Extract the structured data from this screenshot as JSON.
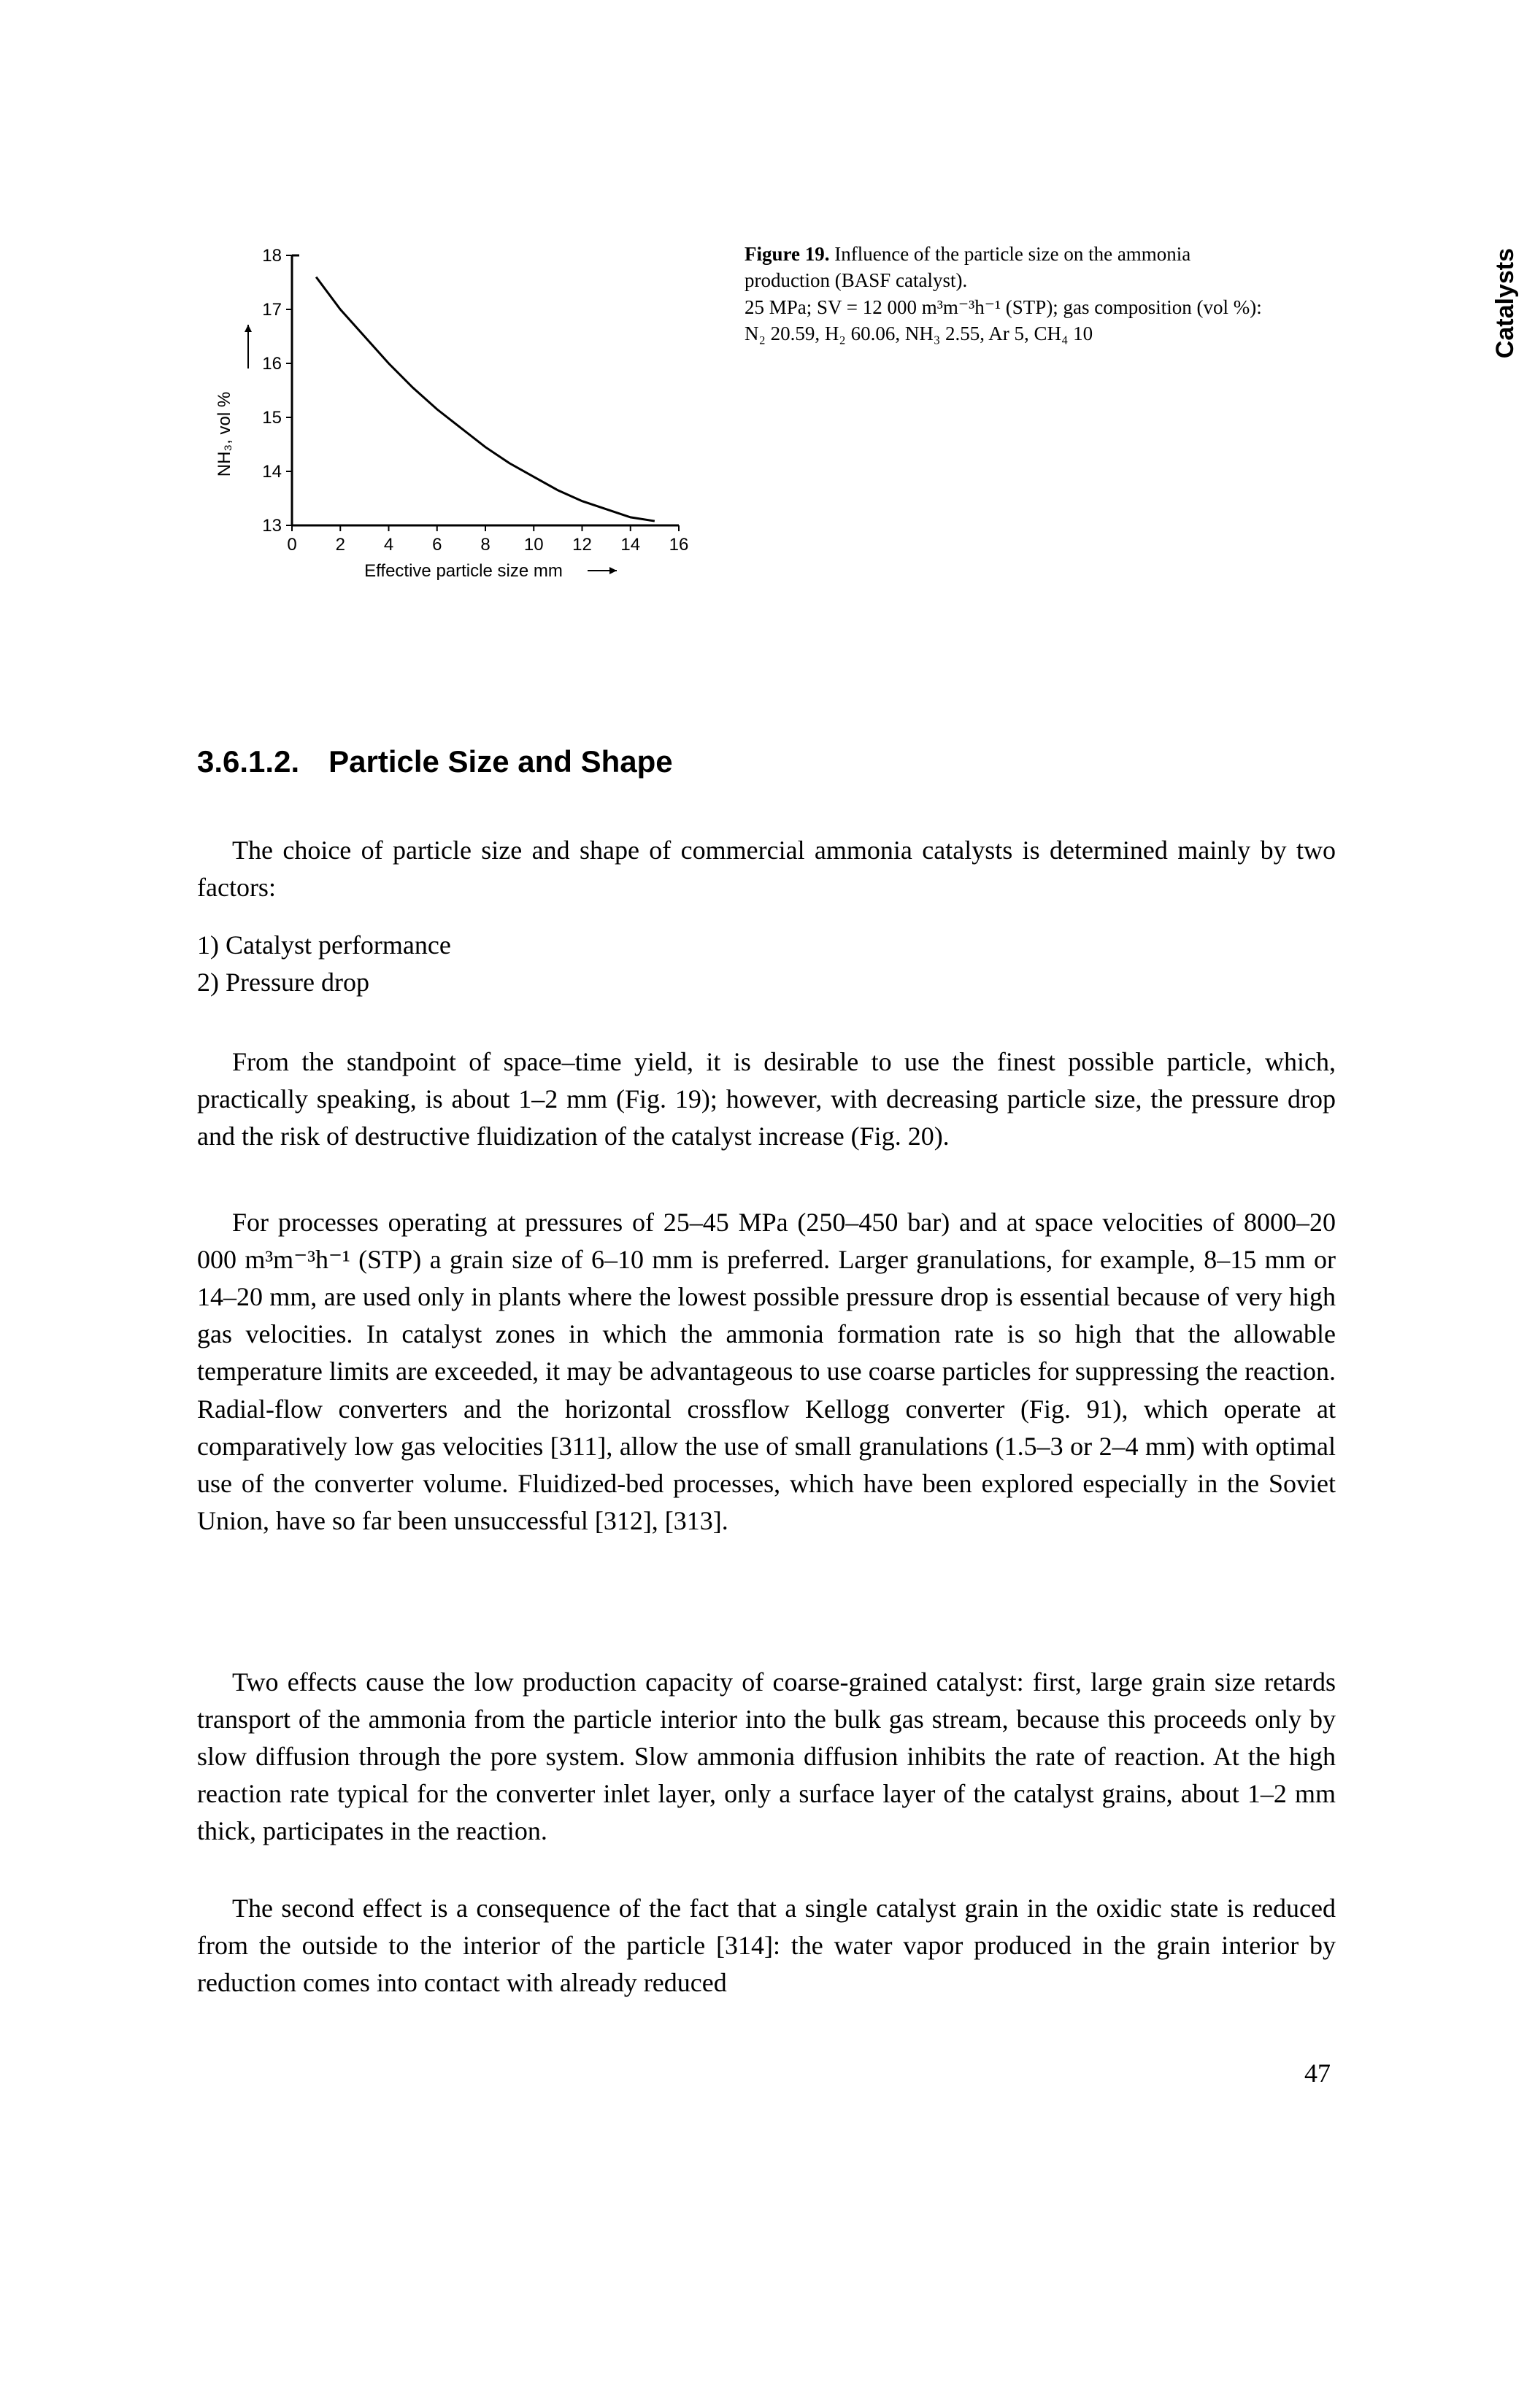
{
  "side_tab": "Catalysts",
  "figure": {
    "chart": {
      "type": "line",
      "x_label": "Effective particle size   mm",
      "y_label": "NH₃,  vol %",
      "xlim": [
        0,
        16
      ],
      "ylim": [
        13,
        18
      ],
      "xticks": [
        0,
        2,
        4,
        6,
        8,
        10,
        12,
        14,
        16
      ],
      "yticks": [
        13,
        14,
        15,
        16,
        17,
        18
      ],
      "line_color": "#000000",
      "line_width": 3,
      "axis_color": "#000000",
      "axis_width": 3,
      "tick_length": 8,
      "background": "#ffffff",
      "font_family": "Arial, Helvetica, sans-serif",
      "tick_fontsize": 24,
      "label_fontsize": 24,
      "data": [
        {
          "x": 1.0,
          "y": 17.6
        },
        {
          "x": 2.0,
          "y": 17.0
        },
        {
          "x": 3.0,
          "y": 16.5
        },
        {
          "x": 4.0,
          "y": 16.0
        },
        {
          "x": 5.0,
          "y": 15.55
        },
        {
          "x": 6.0,
          "y": 15.15
        },
        {
          "x": 7.0,
          "y": 14.8
        },
        {
          "x": 8.0,
          "y": 14.45
        },
        {
          "x": 9.0,
          "y": 14.15
        },
        {
          "x": 10.0,
          "y": 13.9
        },
        {
          "x": 11.0,
          "y": 13.65
        },
        {
          "x": 12.0,
          "y": 13.45
        },
        {
          "x": 13.0,
          "y": 13.3
        },
        {
          "x": 14.0,
          "y": 13.15
        },
        {
          "x": 15.0,
          "y": 13.08
        }
      ]
    },
    "caption_bold": "Figure 19.",
    "caption_rest_1": " Influence of the particle size on the ammonia production (BASF catalyst).",
    "caption_line2": "25 MPa; SV = 12 000 m³m⁻³h⁻¹ (STP); gas composition (vol %): N₂ 20.59, H₂ 60.06, NH₃ 2.55, Ar 5, CH₄ 10"
  },
  "heading_num": "3.6.1.2.",
  "heading_title": "Particle Size and Shape",
  "para1": "The choice of particle size and shape of commercial ammonia catalysts is determined mainly by two factors:",
  "list_item_1": "1) Catalyst performance",
  "list_item_2": "2) Pressure drop",
  "para2": "From the standpoint of space–time yield, it is desirable to use the finest possible particle, which, practically speaking, is about 1–2 mm (Fig. 19); however, with decreasing particle size, the pressure drop and the risk of destructive fluidization of the catalyst increase (Fig. 20).",
  "para3": "For processes operating at pressures of 25–45 MPa (250–450 bar) and at space velocities of 8000–20 000 m³m⁻³h⁻¹ (STP) a grain size of 6–10 mm is preferred. Larger granulations, for example, 8–15 mm or 14–20 mm, are used only in plants where the lowest possible pressure drop is essential because of very high gas velocities. In catalyst zones in which the ammonia formation rate is so high that the allowable temperature limits are exceeded, it may be advantageous to use coarse particles for suppressing the reaction. Radial-flow converters and the horizontal crossflow Kellogg converter (Fig. 91), which operate at comparatively low gas velocities [311], allow the use of small granulations (1.5–3 or 2–4 mm) with optimal use of the converter volume. Fluidized-bed processes, which have been explored especially in the Soviet Union, have so far been unsuccessful [312], [313].",
  "para4": "Two effects cause the low production capacity of coarse-grained catalyst: first, large grain size retards transport of the ammonia from the particle interior into the bulk gas stream, because this proceeds only by slow diffusion through the pore system. Slow ammonia diffusion inhibits the rate of reaction. At the high reaction rate typical for the converter inlet layer, only a surface layer of the catalyst grains, about 1–2 mm thick, participates in the reaction.",
  "para5": "The second effect is a consequence of the fact that a single catalyst grain in the oxidic state is reduced from the outside to the interior of the particle [314]: the water vapor produced in the grain interior by reduction comes into contact with already reduced",
  "page_number": "47"
}
